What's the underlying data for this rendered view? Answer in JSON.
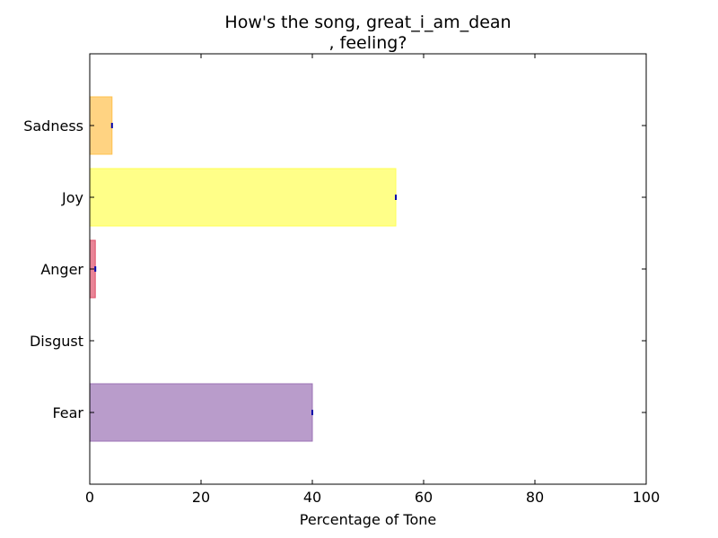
{
  "chart_data": {
    "type": "bar",
    "orientation": "horizontal",
    "title_line1": "How's the song, great_i_am_dean",
    "title_line2": ", feeling?",
    "xlabel": "Percentage of Tone",
    "ylabel": "",
    "xlim": [
      0,
      100
    ],
    "xticks": [
      "0",
      "20",
      "40",
      "60",
      "80",
      "100"
    ],
    "categories": [
      "Fear",
      "Disgust",
      "Anger",
      "Joy",
      "Sadness"
    ],
    "values": [
      40,
      0,
      1,
      55,
      4
    ],
    "colors": [
      "#9b72b5",
      "#7ba428",
      "#e0506a",
      "#ffff55",
      "#ffc04d"
    ],
    "grid": false
  }
}
